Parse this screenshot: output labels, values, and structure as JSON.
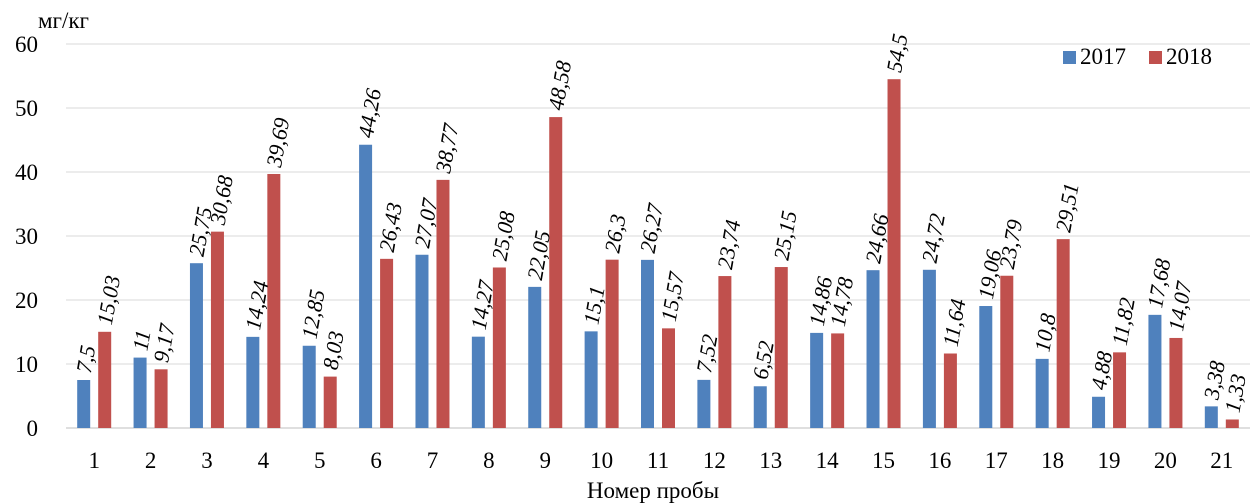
{
  "chart_data": {
    "type": "bar",
    "title": "",
    "ylabel": "мг/кг",
    "xlabel": "Номер пробы",
    "ylim": [
      0,
      60
    ],
    "yticks": [
      0,
      10,
      20,
      30,
      40,
      50,
      60
    ],
    "grid": true,
    "legend_position": "top-right",
    "categories": [
      "1",
      "2",
      "3",
      "4",
      "5",
      "6",
      "7",
      "8",
      "9",
      "10",
      "11",
      "12",
      "13",
      "14",
      "15",
      "16",
      "17",
      "18",
      "19",
      "20",
      "21"
    ],
    "series": [
      {
        "name": "2017",
        "color": "#4f81bd",
        "values": [
          7.5,
          11,
          25.75,
          14.24,
          12.85,
          44.26,
          27.07,
          14.27,
          22.05,
          15.1,
          26.27,
          7.52,
          6.52,
          14.86,
          24.66,
          24.72,
          19.06,
          10.8,
          4.88,
          17.68,
          3.38
        ],
        "labels": [
          "7,5",
          "11",
          "25,75",
          "14,24",
          "12,85",
          "44,26",
          "27,07",
          "14,27",
          "22,05",
          "15,1",
          "26,27",
          "7,52",
          "6,52",
          "14,86",
          "24,66",
          "24,72",
          "19,06",
          "10,8",
          "4,88",
          "17,68",
          "3,38"
        ]
      },
      {
        "name": "2018",
        "color": "#c0504d",
        "values": [
          15.03,
          9.17,
          30.68,
          39.69,
          8.03,
          26.43,
          38.77,
          25.08,
          48.58,
          26.3,
          15.57,
          23.74,
          25.15,
          14.78,
          54.5,
          11.64,
          23.79,
          29.51,
          11.82,
          14.07,
          1.33
        ],
        "labels": [
          "15,03",
          "9,17",
          "30,68",
          "39,69",
          "8,03",
          "26,43",
          "38,77",
          "25,08",
          "48,58",
          "26,3",
          "15,57",
          "23,74",
          "25,15",
          "14,78",
          "54,5",
          "11,64",
          "23,79",
          "29,51",
          "11,82",
          "14,07",
          "1,33"
        ]
      }
    ]
  }
}
